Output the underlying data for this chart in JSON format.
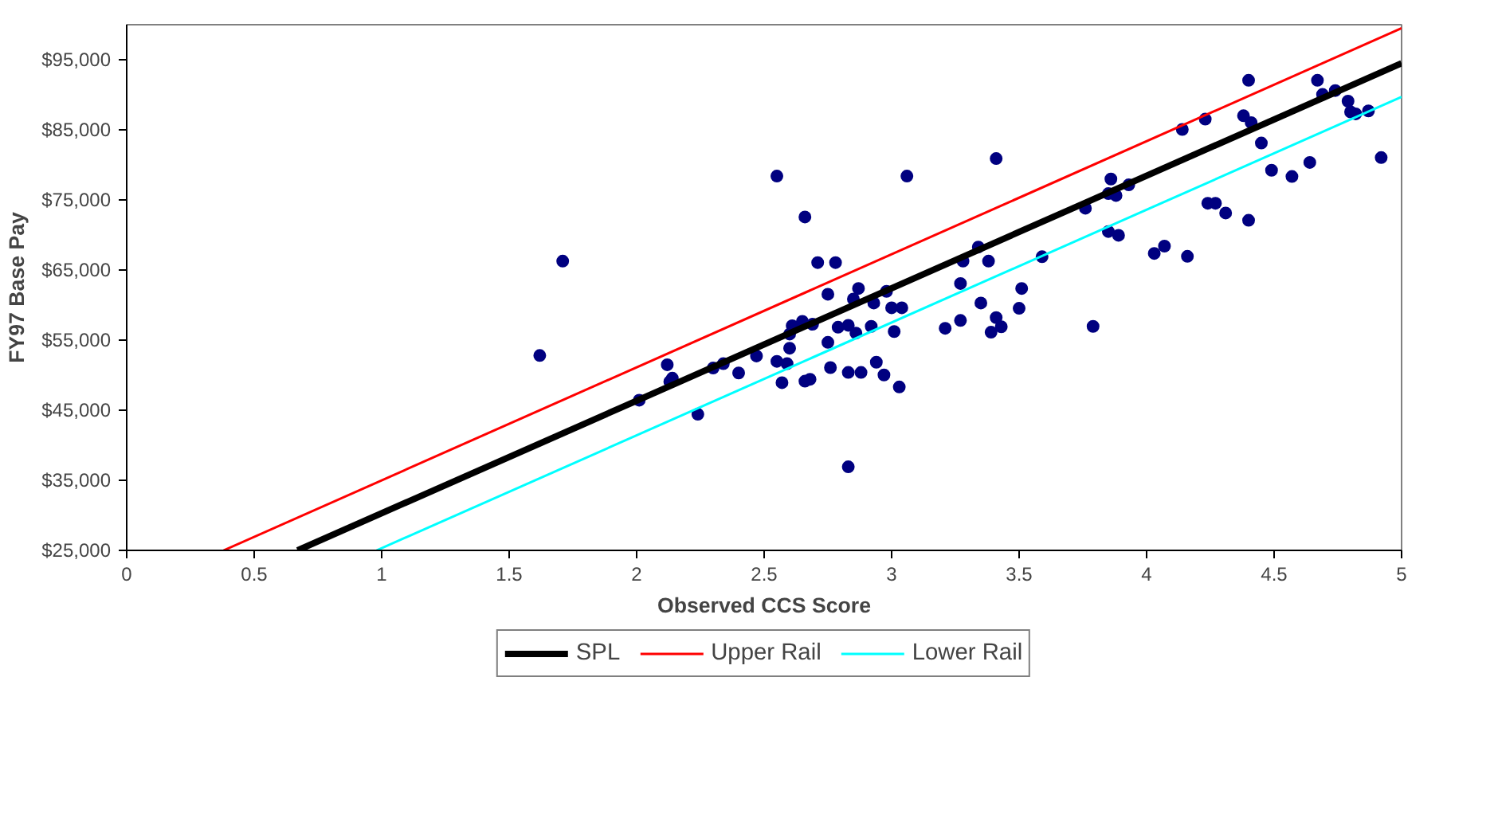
{
  "chart_data": {
    "type": "scatter",
    "xlabel": "Observed CCS Score",
    "ylabel": "FY97 Base Pay",
    "xlim": [
      0,
      5
    ],
    "xticks": [
      0,
      0.5,
      1,
      1.5,
      2,
      2.5,
      3,
      3.5,
      4,
      4.5,
      5
    ],
    "ylim": [
      25000,
      100000
    ],
    "yticks": [
      {
        "value": 25000,
        "label": "$25,000"
      },
      {
        "value": 35000,
        "label": "$35,000"
      },
      {
        "value": 45000,
        "label": "$45,000"
      },
      {
        "value": 55000,
        "label": "$55,000"
      },
      {
        "value": 65000,
        "label": "$65,000"
      },
      {
        "value": 75000,
        "label": "$75,000"
      },
      {
        "value": 85000,
        "label": "$85,000"
      },
      {
        "value": 95000,
        "label": "$95,000"
      }
    ],
    "grid": false,
    "legend": "bottom",
    "series": [
      {
        "marker": "circle",
        "color": "#000080",
        "x": [
          2.55,
          3.06,
          2.66,
          1.71,
          2.71,
          2.78,
          2.75,
          2.87,
          2.85,
          2.98,
          2.93,
          3.0,
          3.04,
          2.61,
          2.65,
          2.69,
          2.6,
          2.79,
          2.83,
          2.86,
          2.92,
          3.01,
          3.21,
          3.27,
          3.27,
          3.28,
          2.6,
          2.75,
          1.62,
          2.12,
          2.14,
          2.13,
          2.3,
          2.34,
          2.4,
          2.47,
          2.55,
          2.59,
          2.01,
          2.24,
          2.57,
          2.66,
          2.68,
          2.76,
          2.83,
          2.88,
          2.94,
          2.97,
          3.03,
          2.83,
          3.34,
          3.38,
          3.35,
          3.41,
          3.41,
          3.39,
          3.43,
          3.5,
          3.51,
          3.59,
          3.76,
          3.79,
          3.86,
          3.85,
          3.88,
          3.93,
          3.85,
          3.89,
          4.03,
          4.07,
          4.16,
          4.14,
          4.23,
          4.24,
          4.27,
          4.31,
          4.4,
          4.38,
          4.41,
          4.4,
          4.45,
          4.49,
          4.57,
          4.64,
          4.67,
          4.69,
          4.74,
          4.79,
          4.8,
          4.82,
          4.87,
          4.92
        ],
        "values": [
          78400,
          78400,
          72570,
          66270,
          66060,
          66060,
          61540,
          62370,
          60860,
          61960,
          60290,
          59610,
          59610,
          57050,
          57670,
          57260,
          55860,
          56840,
          57110,
          56000,
          56960,
          56220,
          56690,
          57800,
          63080,
          66270,
          53840,
          54680,
          52800,
          51490,
          49560,
          49060,
          51010,
          51640,
          50310,
          52740,
          51970,
          51640,
          46430,
          44420,
          48930,
          49140,
          49410,
          51080,
          50390,
          50390,
          51850,
          50030,
          48310,
          36920,
          68280,
          66270,
          60290,
          80900,
          58210,
          56130,
          56900,
          59540,
          62370,
          66890,
          73820,
          56960,
          77980,
          75900,
          75630,
          77150,
          70490,
          69950,
          67370,
          68410,
          66950,
          85060,
          86520,
          74530,
          74530,
          73130,
          72090,
          87010,
          86030,
          92070,
          83120,
          79230,
          78340,
          80350,
          92070,
          90050,
          90610,
          89090,
          87560,
          87280,
          87700,
          81040
        ]
      },
      {
        "type": "line",
        "name": "SPL",
        "color": "#000000",
        "x": [
          0.67,
          5
        ],
        "values": [
          25000,
          94500
        ]
      },
      {
        "type": "line",
        "name": "Upper Rail",
        "color": "#ff0000",
        "x": [
          0.38,
          5
        ],
        "values": [
          25000,
          99500
        ]
      },
      {
        "type": "line",
        "name": "Lower Rail",
        "color": "#00ffff",
        "x": [
          0.98,
          5
        ],
        "values": [
          25000,
          89700
        ]
      }
    ]
  }
}
